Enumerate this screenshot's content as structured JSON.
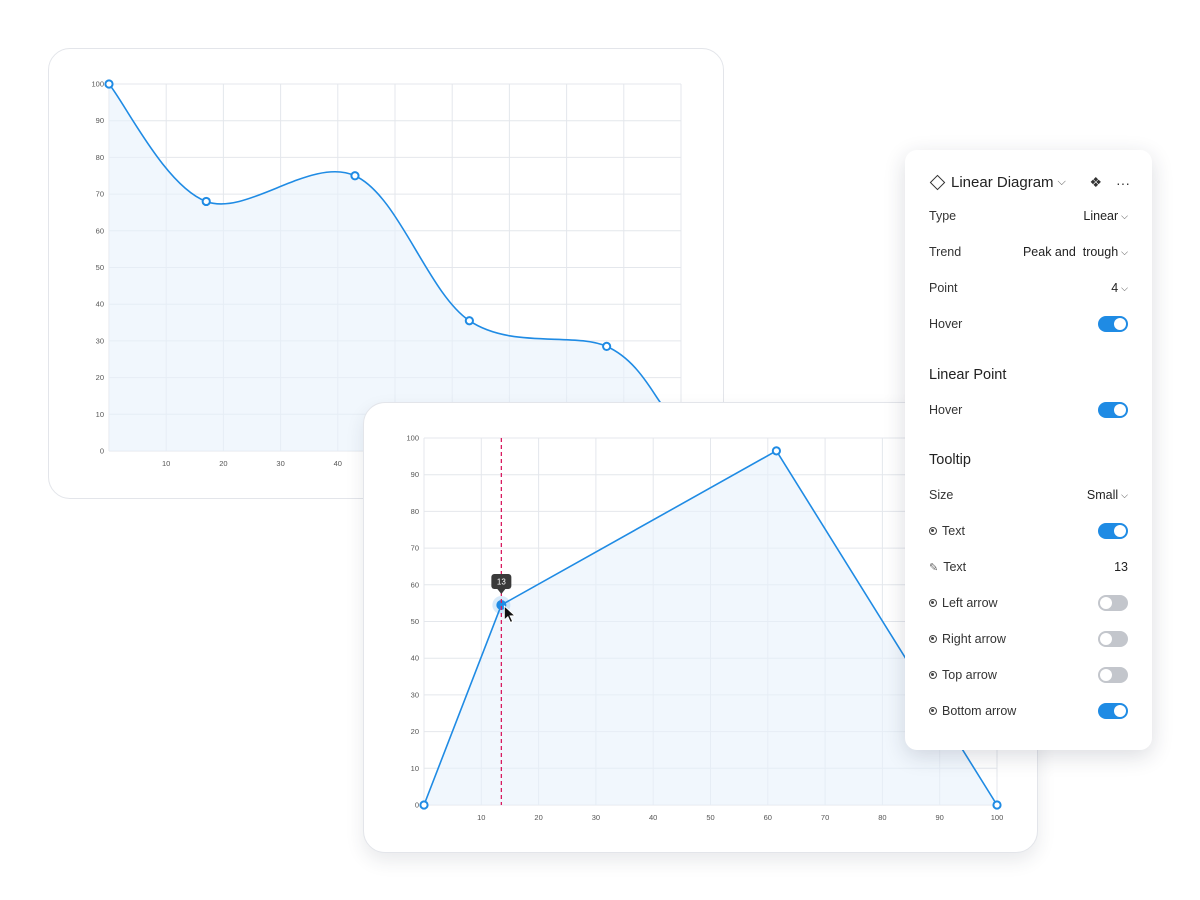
{
  "chart_data": [
    {
      "type": "area",
      "title": "",
      "curve": "smooth",
      "x_ticks": [
        10,
        20,
        30,
        40
      ],
      "y_ticks": [
        0,
        10,
        20,
        30,
        40,
        50,
        60,
        70,
        80,
        90,
        100
      ],
      "xlim": [
        0,
        100
      ],
      "ylim": [
        0,
        100
      ],
      "grid": true,
      "points": [
        {
          "x": 0,
          "y": 100
        },
        {
          "x": 17,
          "y": 68
        },
        {
          "x": 43,
          "y": 75
        },
        {
          "x": 63,
          "y": 35.5
        },
        {
          "x": 87,
          "y": 28.5
        }
      ],
      "curve_end": {
        "x": 97,
        "y": 12
      },
      "color": "#1f8be4"
    },
    {
      "type": "area",
      "title": "",
      "curve": "linear",
      "x_ticks": [
        10,
        20,
        30,
        40,
        50,
        60,
        70,
        80,
        90,
        100
      ],
      "y_ticks": [
        0,
        10,
        20,
        30,
        40,
        50,
        60,
        70,
        80,
        90,
        100
      ],
      "xlim": [
        0,
        100
      ],
      "ylim": [
        0,
        100
      ],
      "grid": true,
      "points": [
        {
          "x": 0,
          "y": 0
        },
        {
          "x": 13.5,
          "y": 54.5
        },
        {
          "x": 61.5,
          "y": 96.5
        },
        {
          "x": 100,
          "y": 0
        }
      ],
      "hover_x": 13.5,
      "hover_index": 1,
      "tooltip_text": "13",
      "color": "#1f8be4",
      "hover_line_color": "#d81b60"
    }
  ],
  "panel": {
    "title": "Linear Diagram",
    "title_icon": "diamond-icon",
    "actions": [
      "component-icon",
      "more-icon"
    ],
    "rows": {
      "type": {
        "label": "Type",
        "value": "Linear"
      },
      "trend": {
        "label": "Trend",
        "value": "Peak and  trough"
      },
      "point": {
        "label": "Point",
        "value": "4"
      },
      "hover": {
        "label": "Hover",
        "on": true
      }
    },
    "linear_point": {
      "heading": "Linear Point",
      "hover": {
        "label": "Hover",
        "on": true
      }
    },
    "tooltip": {
      "heading": "Tooltip",
      "size": {
        "label": "Size",
        "value": "Small"
      },
      "text_toggle": {
        "label": "Text",
        "on": true
      },
      "text_value": {
        "label": "Text",
        "value": "13"
      },
      "left_arrow": {
        "label": "Left arrow",
        "on": false
      },
      "right_arrow": {
        "label": "Right arrow",
        "on": false
      },
      "top_arrow": {
        "label": "Top arrow",
        "on": false
      },
      "bottom_arrow": {
        "label": "Bottom arrow",
        "on": true
      }
    }
  }
}
